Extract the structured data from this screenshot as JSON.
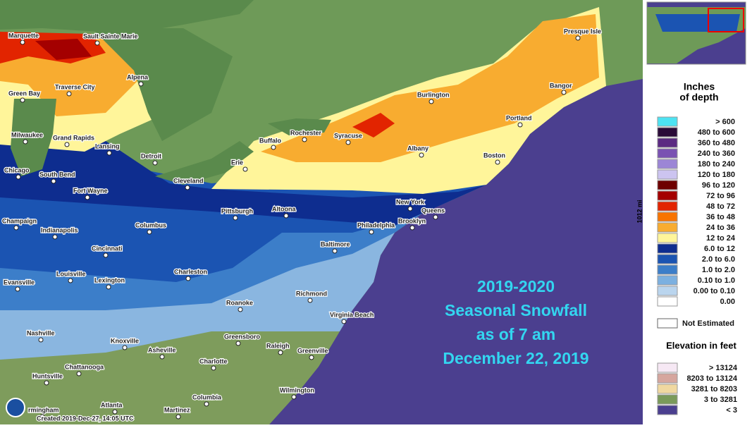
{
  "map": {
    "title_lines": [
      "2019-2020",
      "Seasonal Snowfall",
      "as of 7 am",
      "December 22, 2019"
    ],
    "cities": [
      "Marquette",
      "Sault Sainte Marie",
      "Alpena",
      "Traverse City",
      "Green Bay",
      "Milwaukee",
      "Grand Rapids",
      "Lansing",
      "Detroit",
      "Chicago",
      "South Bend",
      "Fort Wayne",
      "Cleveland",
      "Erie",
      "Buffalo",
      "Rochester",
      "Syracuse",
      "Burlington",
      "Presque Isle",
      "Bangor",
      "Portland",
      "Albany",
      "Boston",
      "New York",
      "Queens",
      "Brooklyn",
      "Philadelphia",
      "Pittsburgh",
      "Altoona",
      "Champaign",
      "Indianapolis",
      "Columbus",
      "Cincinnati",
      "Baltimore",
      "Louisville",
      "Charleston",
      "Lexington",
      "Evansville",
      "Richmond",
      "Roanoke",
      "Virginia Beach",
      "Nashville",
      "Knoxville",
      "Greensboro",
      "Raleigh",
      "Asheville",
      "Greenville",
      "Charlotte",
      "Chattanooga",
      "Huntsville",
      "Wilmington",
      "Columbia",
      "Atlanta",
      "rmingham",
      "Martinez"
    ],
    "scale_label": "1012 mi",
    "credit": "Created 2019-Dec-27, 14:05 UTC"
  },
  "legend": {
    "title_lines": [
      "Inches",
      "of depth"
    ],
    "rows": [
      {
        "label": "> 600",
        "color": "#4de3f2"
      },
      {
        "label": "480 to 600",
        "color": "#2a0b38"
      },
      {
        "label": "360 to 480",
        "color": "#5b2a82"
      },
      {
        "label": "240 to 360",
        "color": "#7a52b2"
      },
      {
        "label": "180 to 240",
        "color": "#9c86d6"
      },
      {
        "label": "120 to 180",
        "color": "#ccc4f0"
      },
      {
        "label": "96 to 120",
        "color": "#6e0000"
      },
      {
        "label": "72 to 96",
        "color": "#a40000"
      },
      {
        "label": "48 to 72",
        "color": "#e22400"
      },
      {
        "label": "36 to 48",
        "color": "#f87400"
      },
      {
        "label": "24 to 36",
        "color": "#f8ac30"
      },
      {
        "label": "12 to 24",
        "color": "#fff59a"
      },
      {
        "label": "6.0 to 12",
        "color": "#0e2d8f"
      },
      {
        "label": "2.0 to 6.0",
        "color": "#1b54b2"
      },
      {
        "label": "1.0 to 2.0",
        "color": "#3c7ec9"
      },
      {
        "label": "0.10 to 1.0",
        "color": "#7cb0e0"
      },
      {
        "label": "0.00 to 0.10",
        "color": "#bad5ee"
      },
      {
        "label": "0.00",
        "color": "#ffffff"
      }
    ],
    "not_estimated": "Not Estimated",
    "elevation_title": "Elevation in feet",
    "elevation_rows": [
      {
        "label": "> 13124",
        "color": "#f6e8f4"
      },
      {
        "label": "8203 to 13124",
        "color": "#d6a69e"
      },
      {
        "label": "3281 to 8203",
        "color": "#f0d8a0"
      },
      {
        "label": "3 to 3281",
        "color": "#7a9a5a"
      },
      {
        "label": "< 3",
        "color": "#4b3f8f"
      }
    ]
  }
}
